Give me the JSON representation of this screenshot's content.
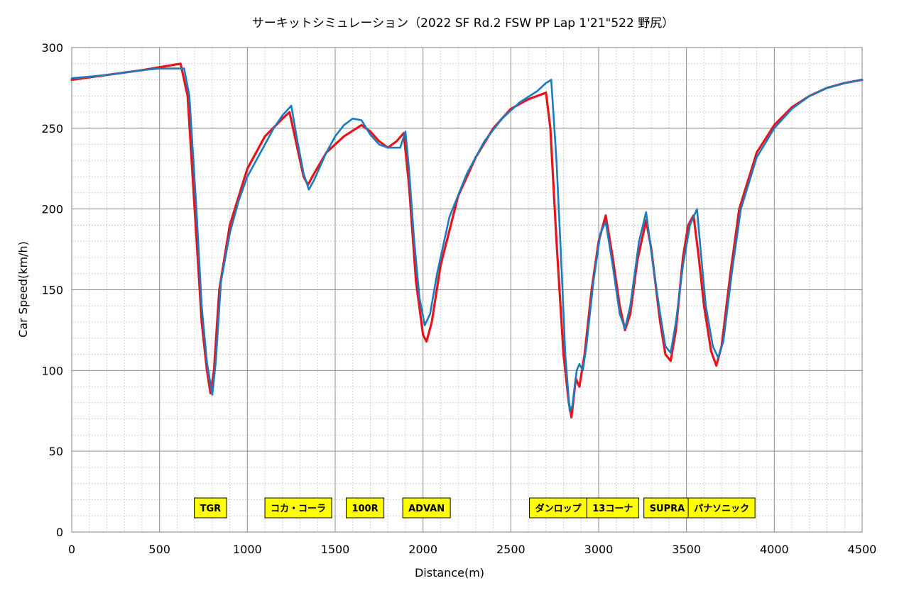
{
  "chart_data": {
    "type": "line",
    "title": "サーキットシミュレーション（2022 SF Rd.2 FSW PP Lap 1'21\"522 野尻）",
    "xlabel": "Distance(m)",
    "ylabel": "Car Speed(km/h)",
    "xlim": [
      0,
      4500
    ],
    "ylim": [
      0,
      300
    ],
    "x_ticks": [
      0,
      500,
      1000,
      1500,
      2000,
      2500,
      3000,
      3500,
      4000,
      4500
    ],
    "y_ticks": [
      0,
      50,
      100,
      150,
      200,
      250,
      300
    ],
    "x_tick_labels": [
      "0",
      "500",
      "1000",
      "1500",
      "2000",
      "2500",
      "3000",
      "3500",
      "4000",
      "4500"
    ],
    "y_tick_labels": [
      "0",
      "50",
      "100",
      "150",
      "200",
      "250",
      "300"
    ],
    "grid": true,
    "series": [
      {
        "color": "#e8141c",
        "points": [
          [
            0,
            280
          ],
          [
            200,
            283
          ],
          [
            400,
            286
          ],
          [
            620,
            290
          ],
          [
            660,
            270
          ],
          [
            700,
            200
          ],
          [
            740,
            130
          ],
          [
            770,
            100
          ],
          [
            790,
            86
          ],
          [
            810,
            100
          ],
          [
            840,
            150
          ],
          [
            900,
            190
          ],
          [
            1000,
            225
          ],
          [
            1100,
            245
          ],
          [
            1200,
            256
          ],
          [
            1240,
            260
          ],
          [
            1280,
            240
          ],
          [
            1320,
            220
          ],
          [
            1345,
            215
          ],
          [
            1380,
            222
          ],
          [
            1450,
            235
          ],
          [
            1550,
            245
          ],
          [
            1650,
            252
          ],
          [
            1700,
            248
          ],
          [
            1750,
            242
          ],
          [
            1800,
            238
          ],
          [
            1850,
            242
          ],
          [
            1890,
            247
          ],
          [
            1920,
            215
          ],
          [
            1960,
            155
          ],
          [
            2000,
            122
          ],
          [
            2020,
            118
          ],
          [
            2050,
            130
          ],
          [
            2100,
            165
          ],
          [
            2200,
            208
          ],
          [
            2300,
            232
          ],
          [
            2400,
            250
          ],
          [
            2500,
            262
          ],
          [
            2600,
            268
          ],
          [
            2700,
            272
          ],
          [
            2725,
            250
          ],
          [
            2760,
            180
          ],
          [
            2800,
            110
          ],
          [
            2830,
            80
          ],
          [
            2845,
            71
          ],
          [
            2870,
            95
          ],
          [
            2890,
            90
          ],
          [
            2920,
            110
          ],
          [
            2960,
            150
          ],
          [
            3000,
            180
          ],
          [
            3040,
            196
          ],
          [
            3080,
            170
          ],
          [
            3120,
            140
          ],
          [
            3150,
            125
          ],
          [
            3180,
            135
          ],
          [
            3220,
            168
          ],
          [
            3270,
            193
          ],
          [
            3300,
            175
          ],
          [
            3350,
            130
          ],
          [
            3380,
            110
          ],
          [
            3410,
            106
          ],
          [
            3440,
            125
          ],
          [
            3480,
            170
          ],
          [
            3510,
            190
          ],
          [
            3540,
            196
          ],
          [
            3570,
            170
          ],
          [
            3600,
            140
          ],
          [
            3640,
            112
          ],
          [
            3670,
            103
          ],
          [
            3700,
            115
          ],
          [
            3750,
            160
          ],
          [
            3800,
            200
          ],
          [
            3900,
            235
          ],
          [
            4000,
            252
          ],
          [
            4100,
            263
          ],
          [
            4200,
            270
          ],
          [
            4300,
            275
          ],
          [
            4400,
            278
          ],
          [
            4500,
            280
          ]
        ]
      },
      {
        "color": "#1a7bbf",
        "points": [
          [
            0,
            281
          ],
          [
            200,
            283
          ],
          [
            400,
            286
          ],
          [
            500,
            287
          ],
          [
            640,
            287
          ],
          [
            670,
            270
          ],
          [
            710,
            200
          ],
          [
            740,
            140
          ],
          [
            770,
            105
          ],
          [
            800,
            85
          ],
          [
            820,
            105
          ],
          [
            850,
            155
          ],
          [
            900,
            185
          ],
          [
            950,
            205
          ],
          [
            1000,
            220
          ],
          [
            1100,
            240
          ],
          [
            1150,
            250
          ],
          [
            1200,
            258
          ],
          [
            1250,
            264
          ],
          [
            1280,
            245
          ],
          [
            1320,
            222
          ],
          [
            1350,
            212
          ],
          [
            1380,
            218
          ],
          [
            1450,
            235
          ],
          [
            1500,
            245
          ],
          [
            1550,
            252
          ],
          [
            1600,
            256
          ],
          [
            1650,
            255
          ],
          [
            1700,
            246
          ],
          [
            1750,
            240
          ],
          [
            1800,
            238
          ],
          [
            1870,
            238
          ],
          [
            1900,
            248
          ],
          [
            1920,
            225
          ],
          [
            1950,
            180
          ],
          [
            1980,
            145
          ],
          [
            2010,
            128
          ],
          [
            2040,
            135
          ],
          [
            2080,
            160
          ],
          [
            2150,
            195
          ],
          [
            2250,
            222
          ],
          [
            2350,
            242
          ],
          [
            2450,
            256
          ],
          [
            2550,
            266
          ],
          [
            2650,
            273
          ],
          [
            2700,
            278
          ],
          [
            2730,
            280
          ],
          [
            2760,
            230
          ],
          [
            2790,
            160
          ],
          [
            2810,
            110
          ],
          [
            2835,
            75
          ],
          [
            2850,
            78
          ],
          [
            2875,
            100
          ],
          [
            2890,
            104
          ],
          [
            2910,
            100
          ],
          [
            2930,
            115
          ],
          [
            2970,
            155
          ],
          [
            3010,
            185
          ],
          [
            3040,
            192
          ],
          [
            3080,
            165
          ],
          [
            3120,
            135
          ],
          [
            3150,
            126
          ],
          [
            3180,
            140
          ],
          [
            3230,
            180
          ],
          [
            3270,
            198
          ],
          [
            3310,
            165
          ],
          [
            3350,
            135
          ],
          [
            3380,
            115
          ],
          [
            3410,
            111
          ],
          [
            3440,
            130
          ],
          [
            3480,
            165
          ],
          [
            3520,
            190
          ],
          [
            3560,
            200
          ],
          [
            3580,
            175
          ],
          [
            3610,
            140
          ],
          [
            3650,
            115
          ],
          [
            3680,
            108
          ],
          [
            3710,
            118
          ],
          [
            3760,
            162
          ],
          [
            3810,
            200
          ],
          [
            3900,
            232
          ],
          [
            4000,
            250
          ],
          [
            4100,
            262
          ],
          [
            4200,
            270
          ],
          [
            4300,
            275
          ],
          [
            4400,
            278
          ],
          [
            4500,
            280
          ]
        ]
      }
    ],
    "annotations": [
      {
        "text": "TGR",
        "x": 790
      },
      {
        "text": "コカ・コーラ",
        "x": 1290
      },
      {
        "text": "100R",
        "x": 1670
      },
      {
        "text": "ADVAN",
        "x": 2020
      },
      {
        "text": "ダンロップ",
        "x": 2770
      },
      {
        "text": "13コーナ",
        "x": 3080
      },
      {
        "text": "SUPRA",
        "x": 3390
      },
      {
        "text": "パナソニック",
        "x": 3700
      }
    ]
  }
}
